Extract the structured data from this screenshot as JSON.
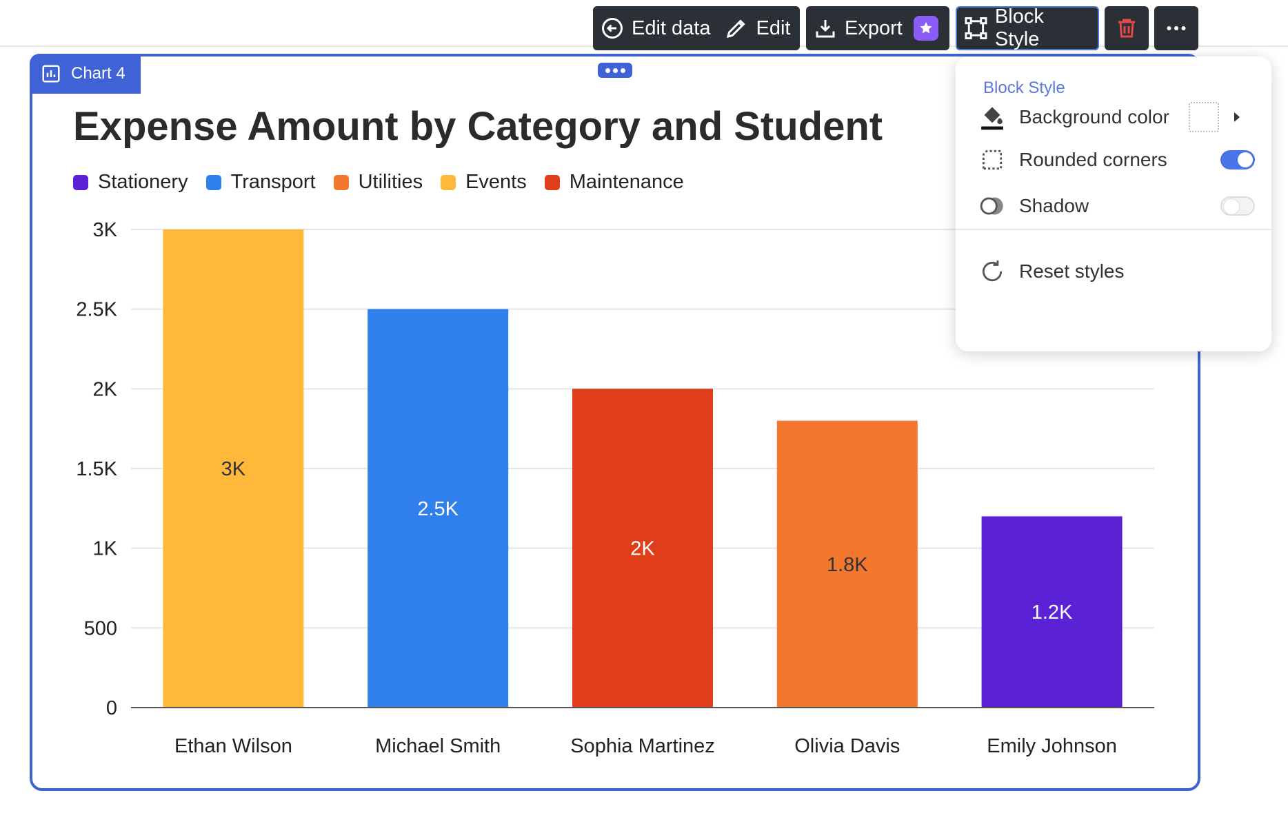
{
  "toolbar": {
    "edit_data_label": "Edit data",
    "edit_label": "Edit",
    "export_label": "Export",
    "block_style_label": "Block Style"
  },
  "block": {
    "tag_label": "Chart 4"
  },
  "style_menu": {
    "header": "Block Style",
    "background_color_label": "Background color",
    "rounded_corners_label": "Rounded corners",
    "rounded_corners_on": true,
    "shadow_label": "Shadow",
    "shadow_on": false,
    "reset_label": "Reset styles"
  },
  "chart_data": {
    "type": "bar",
    "title": "Expense Amount by Category and Student",
    "xlabel": "",
    "ylabel": "",
    "ylim": [
      0,
      3000
    ],
    "yticks": [
      0,
      500,
      1000,
      1500,
      2000,
      2500,
      3000
    ],
    "ytick_labels": [
      "0",
      "500",
      "1K",
      "1.5K",
      "2K",
      "2.5K",
      "3K"
    ],
    "grid": true,
    "legend_position": "top-left",
    "legend": [
      {
        "name": "Stationery",
        "color": "#5b21d4"
      },
      {
        "name": "Transport",
        "color": "#2f80ed"
      },
      {
        "name": "Utilities",
        "color": "#f4772e"
      },
      {
        "name": "Events",
        "color": "#ffb839"
      },
      {
        "name": "Maintenance",
        "color": "#e03e1a"
      }
    ],
    "categories": [
      "Ethan Wilson",
      "Michael Smith",
      "Sophia Martinez",
      "Olivia Davis",
      "Emily Johnson"
    ],
    "values": [
      3000,
      2500,
      2000,
      1800,
      1200
    ],
    "value_labels": [
      "3K",
      "2.5K",
      "2K",
      "1.8K",
      "1.2K"
    ],
    "bar_category": [
      "Events",
      "Transport",
      "Maintenance",
      "Utilities",
      "Stationery"
    ],
    "bar_colors": [
      "#ffb839",
      "#2f80ed",
      "#e03e1a",
      "#f4772e",
      "#5b21d4"
    ],
    "label_colors": [
      "#333333",
      "#ffffff",
      "#ffffff",
      "#333333",
      "#ffffff"
    ]
  }
}
